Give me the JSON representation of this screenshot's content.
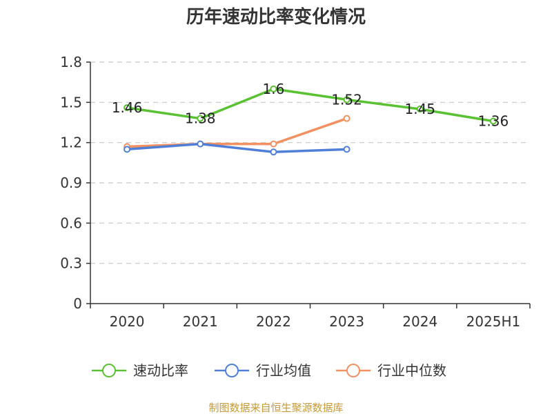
{
  "chart_data": {
    "type": "line",
    "title": "历年速动比率变化情况",
    "xlabel": "",
    "ylabel": "",
    "categories": [
      "2020",
      "2021",
      "2022",
      "2023",
      "2024",
      "2025H1"
    ],
    "ylim": [
      0,
      1.8
    ],
    "yticks": [
      "0",
      "0.3",
      "0.6",
      "0.9",
      "1.2",
      "1.5",
      "1.8"
    ],
    "grid": true,
    "legend_position": "bottom",
    "series": [
      {
        "name": "速动比率",
        "color": "#5ac133",
        "values": [
          1.46,
          1.38,
          1.6,
          1.52,
          1.45,
          1.36
        ],
        "labels": [
          "1.46",
          "1.38",
          "1.6",
          "1.52",
          "1.45",
          "1.36"
        ]
      },
      {
        "name": "行业均值",
        "color": "#4f7fd6",
        "values": [
          1.15,
          1.19,
          1.13,
          1.15,
          null,
          null
        ]
      },
      {
        "name": "行业中位数",
        "color": "#f39060",
        "values": [
          1.17,
          1.19,
          1.19,
          1.38,
          null,
          null
        ]
      }
    ],
    "source_note": "制图数据来自恒生聚源数据库"
  }
}
